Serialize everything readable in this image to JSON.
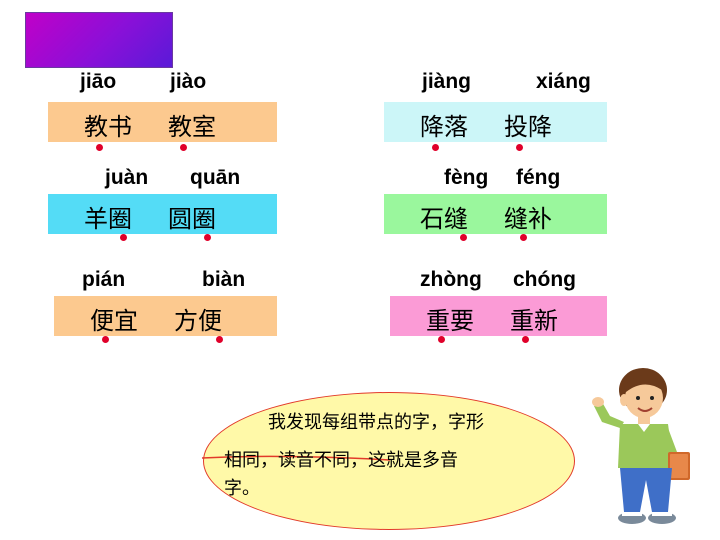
{
  "groups": [
    {
      "pinyin1": "jiāo",
      "pinyin2": "jiào",
      "word1": "教书",
      "word2": "教室",
      "color": "#fcc98f"
    },
    {
      "pinyin1": "jiàng",
      "pinyin2": "xiáng",
      "word1": "降落",
      "word2": "投降",
      "color": "#ccf6f8"
    },
    {
      "pinyin1": "juàn",
      "pinyin2": "quān",
      "word1": "羊圈",
      "word2": "圆圈",
      "color": "#54dcf6"
    },
    {
      "pinyin1": "fèng",
      "pinyin2": "féng",
      "word1": "石缝",
      "word2": "缝补",
      "color": "#9af79d"
    },
    {
      "pinyin1": "pián",
      "pinyin2": "biàn",
      "word1": "便宜",
      "word2": "方便",
      "color": "#fcc98f"
    },
    {
      "pinyin1": "zhòng",
      "pinyin2": "chóng",
      "word1": "重要",
      "word2": "重新",
      "color": "#fb9bd6"
    }
  ],
  "speech": {
    "line1": "我发现每组带点的字，字形",
    "line2": "相同，读音不同，这就是多音",
    "line3": "字。",
    "fill": "#fff9a8",
    "border": "#e23a2a"
  },
  "colors": {
    "dot": "#e0002a",
    "title_block": "#a010d0"
  },
  "character_icon": "boy-student-icon"
}
